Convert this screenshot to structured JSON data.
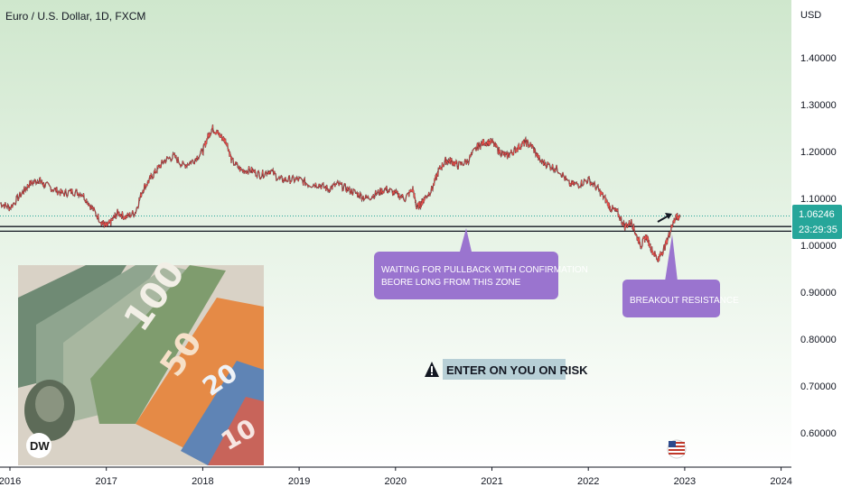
{
  "chart_data": {
    "type": "line",
    "title": "Euro / U.S. Dollar, 1D, FXCM",
    "currency_label": "USD",
    "x_tick_labels": [
      "2016",
      "2017",
      "2018",
      "2019",
      "2020",
      "2021",
      "2022",
      "2023",
      "2024"
    ],
    "y_tick_values": [
      0.6,
      0.7,
      0.8,
      0.9,
      1.0,
      1.1,
      1.2,
      1.3,
      1.4
    ],
    "y_tick_labels": [
      "0.60000",
      "0.70000",
      "0.80000",
      "0.90000",
      "1.00000",
      "1.10000",
      "1.20000",
      "1.30000",
      "1.40000"
    ],
    "xlim": [
      2016.0,
      2024.2
    ],
    "ylim": [
      0.52,
      1.5
    ],
    "grid": false,
    "background_gradient": [
      "#cfe7cd",
      "#ffffff"
    ],
    "series": [
      {
        "color": "#e8504a",
        "x": [
          2015.9,
          2016.0,
          2016.12,
          2016.2,
          2016.3,
          2016.35,
          2016.45,
          2016.55,
          2016.65,
          2016.75,
          2016.85,
          2016.95,
          2017.0,
          2017.05,
          2017.12,
          2017.2,
          2017.3,
          2017.38,
          2017.45,
          2017.52,
          2017.6,
          2017.7,
          2017.8,
          2017.9,
          2018.0,
          2018.05,
          2018.1,
          2018.15,
          2018.2,
          2018.25,
          2018.3,
          2018.4,
          2018.5,
          2018.6,
          2018.7,
          2018.8,
          2018.9,
          2019.0,
          2019.1,
          2019.2,
          2019.3,
          2019.4,
          2019.5,
          2019.6,
          2019.7,
          2019.8,
          2019.9,
          2020.0,
          2020.1,
          2020.18,
          2020.22,
          2020.27,
          2020.3,
          2020.38,
          2020.45,
          2020.52,
          2020.58,
          2020.65,
          2020.75,
          2020.85,
          2020.92,
          2021.0,
          2021.08,
          2021.15,
          2021.22,
          2021.28,
          2021.35,
          2021.42,
          2021.5,
          2021.6,
          2021.7,
          2021.8,
          2021.9,
          2022.0,
          2022.1,
          2022.17,
          2022.23,
          2022.3,
          2022.38,
          2022.45,
          2022.5,
          2022.55,
          2022.6,
          2022.66,
          2022.72,
          2022.75,
          2022.8,
          2022.85,
          2022.88,
          2022.92,
          2022.95
        ],
        "values": [
          1.09,
          1.08,
          1.11,
          1.13,
          1.14,
          1.13,
          1.12,
          1.11,
          1.115,
          1.11,
          1.08,
          1.05,
          1.04,
          1.05,
          1.07,
          1.06,
          1.07,
          1.12,
          1.14,
          1.16,
          1.18,
          1.19,
          1.17,
          1.18,
          1.2,
          1.23,
          1.25,
          1.24,
          1.23,
          1.22,
          1.18,
          1.16,
          1.16,
          1.15,
          1.16,
          1.14,
          1.14,
          1.14,
          1.13,
          1.13,
          1.12,
          1.13,
          1.12,
          1.11,
          1.1,
          1.11,
          1.12,
          1.11,
          1.1,
          1.12,
          1.08,
          1.09,
          1.1,
          1.12,
          1.16,
          1.18,
          1.18,
          1.17,
          1.18,
          1.21,
          1.22,
          1.22,
          1.2,
          1.19,
          1.2,
          1.21,
          1.22,
          1.21,
          1.18,
          1.17,
          1.16,
          1.13,
          1.13,
          1.14,
          1.12,
          1.1,
          1.08,
          1.07,
          1.04,
          1.05,
          1.02,
          1.0,
          1.02,
          0.99,
          0.97,
          0.98,
          1.0,
          1.03,
          1.05,
          1.06,
          1.06
        ]
      }
    ],
    "support_lines": [
      1.04,
      1.03
    ],
    "current_price_line": 1.06246,
    "price_label": {
      "value": "1.06246",
      "countdown": "23:29:35",
      "color": "#26a69a"
    },
    "callouts": [
      {
        "text_lines": [
          "WAITING FOR PULLBACK WITH CONFIRMATION",
          "BEORE LONG FROM THIS ZONE"
        ],
        "color": "#9a74cf"
      },
      {
        "text_lines": [
          "BREAKOUT RESISTANCE"
        ],
        "color": "#9a74cf"
      }
    ],
    "risk_note": "ENTER ON YOU ON RISK",
    "photo_badge_text": "DW",
    "banknote_denominations": [
      "100",
      "50",
      "20",
      "10"
    ]
  }
}
